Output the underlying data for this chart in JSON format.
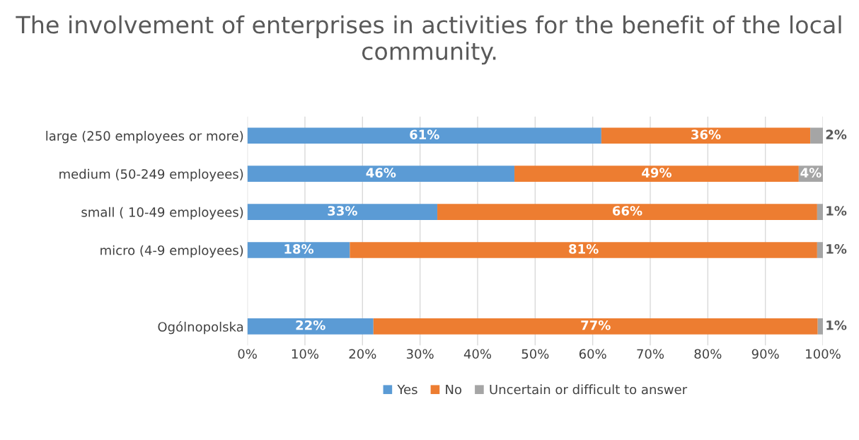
{
  "chart_data": {
    "type": "bar",
    "orientation": "horizontal",
    "stacked": true,
    "title": "The involvement of enterprises in activities for the benefit of the local community.",
    "categories": [
      "large (250 employees or more)",
      "medium (50-249 employees)",
      "small ( 10-49 employees)",
      "micro (4-9 employees)",
      null,
      "Ogólnopolska"
    ],
    "series": [
      {
        "name": "Yes",
        "color": "#5b9bd5",
        "values": [
          61.5,
          46.4,
          33.0,
          17.8,
          null,
          21.9
        ],
        "value_labels": [
          "61%",
          "46%",
          "33%",
          "18%",
          null,
          "22%"
        ]
      },
      {
        "name": "No",
        "color": "#ed7d31",
        "values": [
          36.3,
          49.4,
          66.0,
          81.2,
          null,
          77.2
        ],
        "value_labels": [
          "36%",
          "49%",
          "66%",
          "81%",
          null,
          "77%"
        ]
      },
      {
        "name": "Uncertain or difficult to answer",
        "color": "#a5a5a5",
        "values": [
          2.2,
          4.2,
          1.0,
          1.0,
          null,
          0.9
        ],
        "value_labels": [
          "2%",
          "4%",
          "1%",
          "1%",
          null,
          "1%"
        ]
      }
    ],
    "xlim": [
      0,
      100
    ],
    "xticks": [
      {
        "value": 0,
        "label": "0%"
      },
      {
        "value": 10,
        "label": "10%"
      },
      {
        "value": 20,
        "label": "20%"
      },
      {
        "value": 30,
        "label": "30%"
      },
      {
        "value": 40,
        "label": "40%"
      },
      {
        "value": 50,
        "label": "50%"
      },
      {
        "value": 60,
        "label": "60%"
      },
      {
        "value": 70,
        "label": "70%"
      },
      {
        "value": 80,
        "label": "80%"
      },
      {
        "value": 90,
        "label": "90%"
      },
      {
        "value": 100,
        "label": "100%"
      }
    ],
    "grid": "x",
    "legend": "bottom"
  }
}
